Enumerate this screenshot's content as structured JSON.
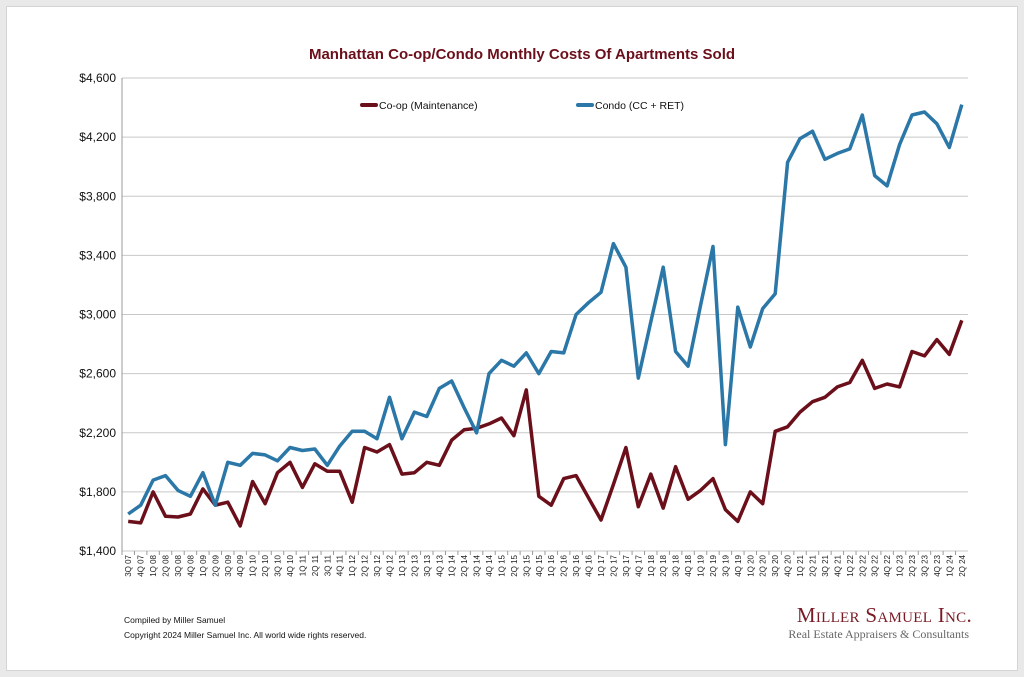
{
  "chart_data": {
    "type": "line",
    "title": "Manhattan Co-op/Condo Monthly Costs Of Apartments Sold",
    "xlabel": "",
    "ylabel": "",
    "ylim": [
      1400,
      4600
    ],
    "yticks": [
      1400,
      1800,
      2200,
      2600,
      3000,
      3400,
      3800,
      4200,
      4600
    ],
    "ytick_labels": [
      "$1,400",
      "$1,800",
      "$2,200",
      "$2,600",
      "$3,000",
      "$3,400",
      "$3,800",
      "$4,200",
      "$4,600"
    ],
    "grid": true,
    "legend_position": "top-center",
    "categories": [
      "3Q 07",
      "4Q 07",
      "1Q 08",
      "2Q 08",
      "3Q 08",
      "4Q 08",
      "1Q 09",
      "2Q 09",
      "3Q 09",
      "4Q 09",
      "1Q 10",
      "2Q 10",
      "3Q 10",
      "4Q 10",
      "1Q 11",
      "2Q 11",
      "3Q 11",
      "4Q 11",
      "1Q 12",
      "2Q 12",
      "3Q 12",
      "4Q 12",
      "1Q 13",
      "2Q 13",
      "3Q 13",
      "4Q 13",
      "1Q 14",
      "2Q 14",
      "3Q 14",
      "4Q 14",
      "1Q 15",
      "2Q 15",
      "3Q 15",
      "4Q 15",
      "1Q 16",
      "2Q 16",
      "3Q 16",
      "4Q 16",
      "1Q 17",
      "2Q 17",
      "3Q 17",
      "4Q 17",
      "1Q 18",
      "2Q 18",
      "3Q 18",
      "4Q 18",
      "1Q 19",
      "2Q 19",
      "3Q 19",
      "4Q 19",
      "1Q 20",
      "2Q 20",
      "3Q 20",
      "4Q 20",
      "1Q 21",
      "2Q 21",
      "3Q 21",
      "4Q 21",
      "1Q 22",
      "2Q 22",
      "3Q 22",
      "4Q 22",
      "1Q 23",
      "2Q 23",
      "3Q 23",
      "4Q 23",
      "1Q 24",
      "2Q 24"
    ],
    "series": [
      {
        "name": "Co-op (Maintenance)",
        "color": "#6b0f1a",
        "values": [
          1600,
          1590,
          1800,
          1635,
          1630,
          1650,
          1820,
          1710,
          1730,
          1570,
          1870,
          1720,
          1930,
          2000,
          1830,
          1990,
          1940,
          1940,
          1730,
          2100,
          2070,
          2120,
          1920,
          1930,
          2000,
          1980,
          2150,
          2220,
          2230,
          2260,
          2300,
          2180,
          2490,
          1770,
          1710,
          1890,
          1910,
          1760,
          1610,
          1850,
          2100,
          1700,
          1920,
          1690,
          1970,
          1750,
          1810,
          1890,
          1680,
          1600,
          1800,
          1720,
          2210,
          2240,
          2340,
          2410,
          2440,
          2510,
          2540,
          2690,
          2500,
          2530,
          2510,
          2750,
          2720,
          2830,
          2730,
          2960
        ]
      },
      {
        "name": "Condo (CC + RET)",
        "color": "#2a77a8",
        "values": [
          1650,
          1710,
          1880,
          1910,
          1810,
          1770,
          1930,
          1710,
          2000,
          1980,
          2060,
          2050,
          2010,
          2100,
          2080,
          2090,
          1980,
          2110,
          2210,
          2210,
          2160,
          2440,
          2160,
          2340,
          2310,
          2500,
          2550,
          2370,
          2200,
          2600,
          2690,
          2650,
          2740,
          2600,
          2750,
          2740,
          3000,
          3080,
          3150,
          3480,
          3320,
          2570,
          2950,
          3320,
          2750,
          2650,
          3060,
          3460,
          2120,
          3050,
          2780,
          3040,
          3140,
          4030,
          4190,
          4240,
          4050,
          4090,
          4120,
          4350,
          3940,
          3870,
          4150,
          4350,
          4370,
          4290,
          4130,
          4420
        ]
      }
    ]
  },
  "footer": {
    "compiled": "Compiled by Miller Samuel",
    "copyright": "Copyright 2024 Miller Samuel Inc.  All world wide rights reserved."
  },
  "logo": {
    "name": "Miller Samuel Inc.",
    "tagline": "Real Estate Appraisers & Consultants"
  }
}
